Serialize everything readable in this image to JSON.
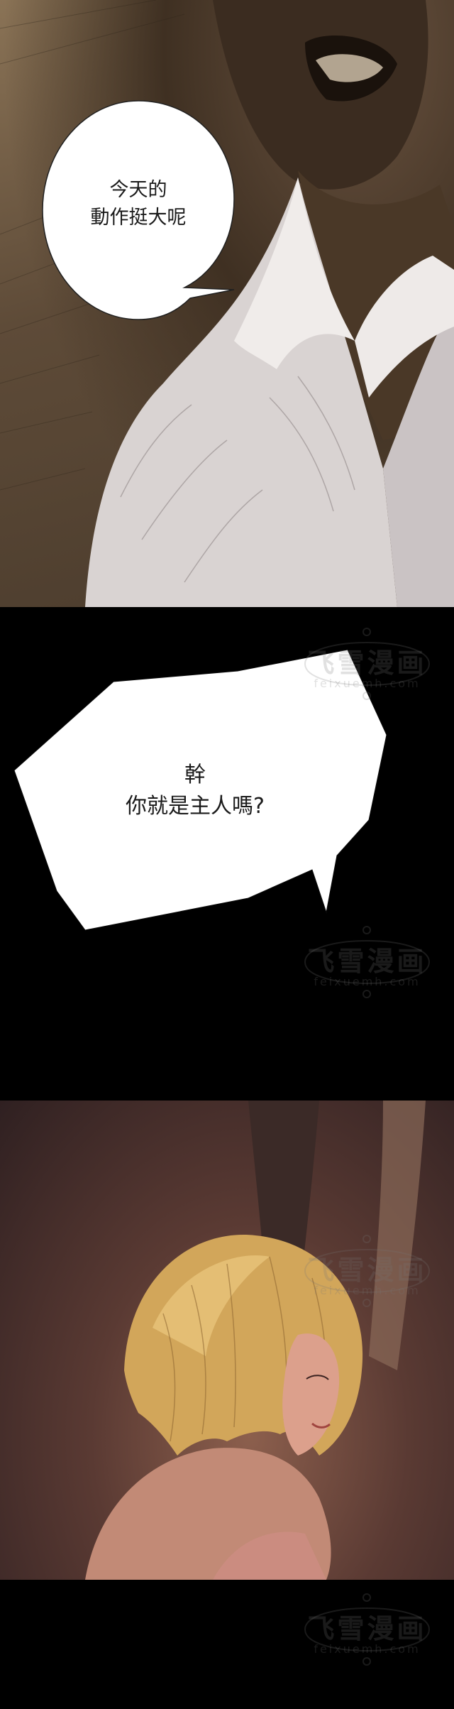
{
  "panels": [
    {
      "bubble_text": "今天的\n動作挺大呢"
    },
    {
      "bubble_text": "幹\n你就是主人嗎?"
    }
  ],
  "watermark": {
    "title": "飞雪漫画",
    "subtitle": "feixuemh.com"
  },
  "colors": {
    "background_black": "#000000",
    "bubble_fill": "#ffffff",
    "text_color": "#1a1a1a"
  }
}
